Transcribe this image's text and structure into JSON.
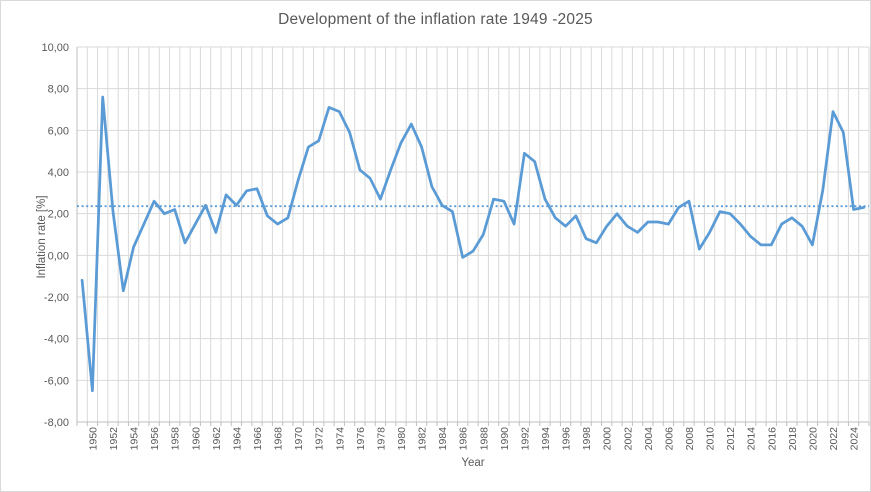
{
  "chart": {
    "title": "Development of the inflation rate 1949 -2025",
    "x_axis_title": "Year",
    "y_axis_title": "Inflation rate [%]"
  },
  "chart_data": {
    "type": "line",
    "title": "Development of the inflation rate 1949 -2025",
    "xlabel": "Year",
    "ylabel": "Inflation rate [%]",
    "x": [
      1949,
      1950,
      1951,
      1952,
      1953,
      1954,
      1955,
      1956,
      1957,
      1958,
      1959,
      1960,
      1961,
      1962,
      1963,
      1964,
      1965,
      1966,
      1967,
      1968,
      1969,
      1970,
      1971,
      1972,
      1973,
      1974,
      1975,
      1976,
      1977,
      1978,
      1979,
      1980,
      1981,
      1982,
      1983,
      1984,
      1985,
      1986,
      1987,
      1988,
      1989,
      1990,
      1991,
      1992,
      1993,
      1994,
      1995,
      1996,
      1997,
      1998,
      1999,
      2000,
      2001,
      2002,
      2003,
      2004,
      2005,
      2006,
      2007,
      2008,
      2009,
      2010,
      2011,
      2012,
      2013,
      2014,
      2015,
      2016,
      2017,
      2018,
      2019,
      2020,
      2021,
      2022,
      2023,
      2024,
      2025
    ],
    "series": [
      {
        "name": "Inflation rate",
        "values": [
          -1.2,
          -6.5,
          7.6,
          2.1,
          -1.7,
          0.4,
          1.5,
          2.6,
          2.0,
          2.2,
          0.6,
          1.5,
          2.4,
          1.1,
          2.9,
          2.4,
          3.1,
          3.2,
          1.9,
          1.5,
          1.8,
          3.6,
          5.2,
          5.5,
          7.1,
          6.9,
          5.9,
          4.1,
          3.7,
          2.7,
          4.1,
          5.4,
          6.3,
          5.2,
          3.3,
          2.4,
          2.1,
          -0.1,
          0.2,
          1.0,
          2.7,
          2.6,
          1.5,
          4.9,
          4.5,
          2.7,
          1.8,
          1.4,
          1.9,
          0.8,
          0.6,
          1.4,
          2.0,
          1.4,
          1.1,
          1.6,
          1.6,
          1.5,
          2.3,
          2.6,
          0.3,
          1.1,
          2.1,
          2.0,
          1.5,
          0.9,
          0.5,
          0.5,
          1.5,
          1.8,
          1.4,
          0.5,
          3.1,
          6.9,
          5.9,
          2.2,
          2.3
        ]
      }
    ],
    "average_line": 2.36,
    "ylim": [
      -8,
      10
    ],
    "y_tick_step": 2,
    "y_tick_labels": [
      "10,00",
      "8,00",
      "6,00",
      "4,00",
      "2,00",
      "0,00",
      "-2,00",
      "-4,00",
      "-6,00",
      "-8,00"
    ],
    "x_tick_labels": [
      "1950",
      "1952",
      "1954",
      "1956",
      "1958",
      "1960",
      "1962",
      "1964",
      "1966",
      "1968",
      "1970",
      "1972",
      "1974",
      "1976",
      "1978",
      "1980",
      "1982",
      "1984",
      "1986",
      "1988",
      "1990",
      "1992",
      "1994",
      "1996",
      "1998",
      "2000",
      "2002",
      "2004",
      "2006",
      "2008",
      "2010",
      "2012",
      "2014",
      "2016",
      "2018",
      "2020",
      "2022",
      "2024"
    ],
    "grid": "both",
    "legend": "none",
    "colors": {
      "line": "#5B9BD5",
      "average_line": "#5B9BD5",
      "gridline": "#D9D9D9",
      "axis_line": "#BFBFBF",
      "tick_text": "#595959",
      "title_text": "#595959",
      "background": "#FFFFFF"
    }
  }
}
